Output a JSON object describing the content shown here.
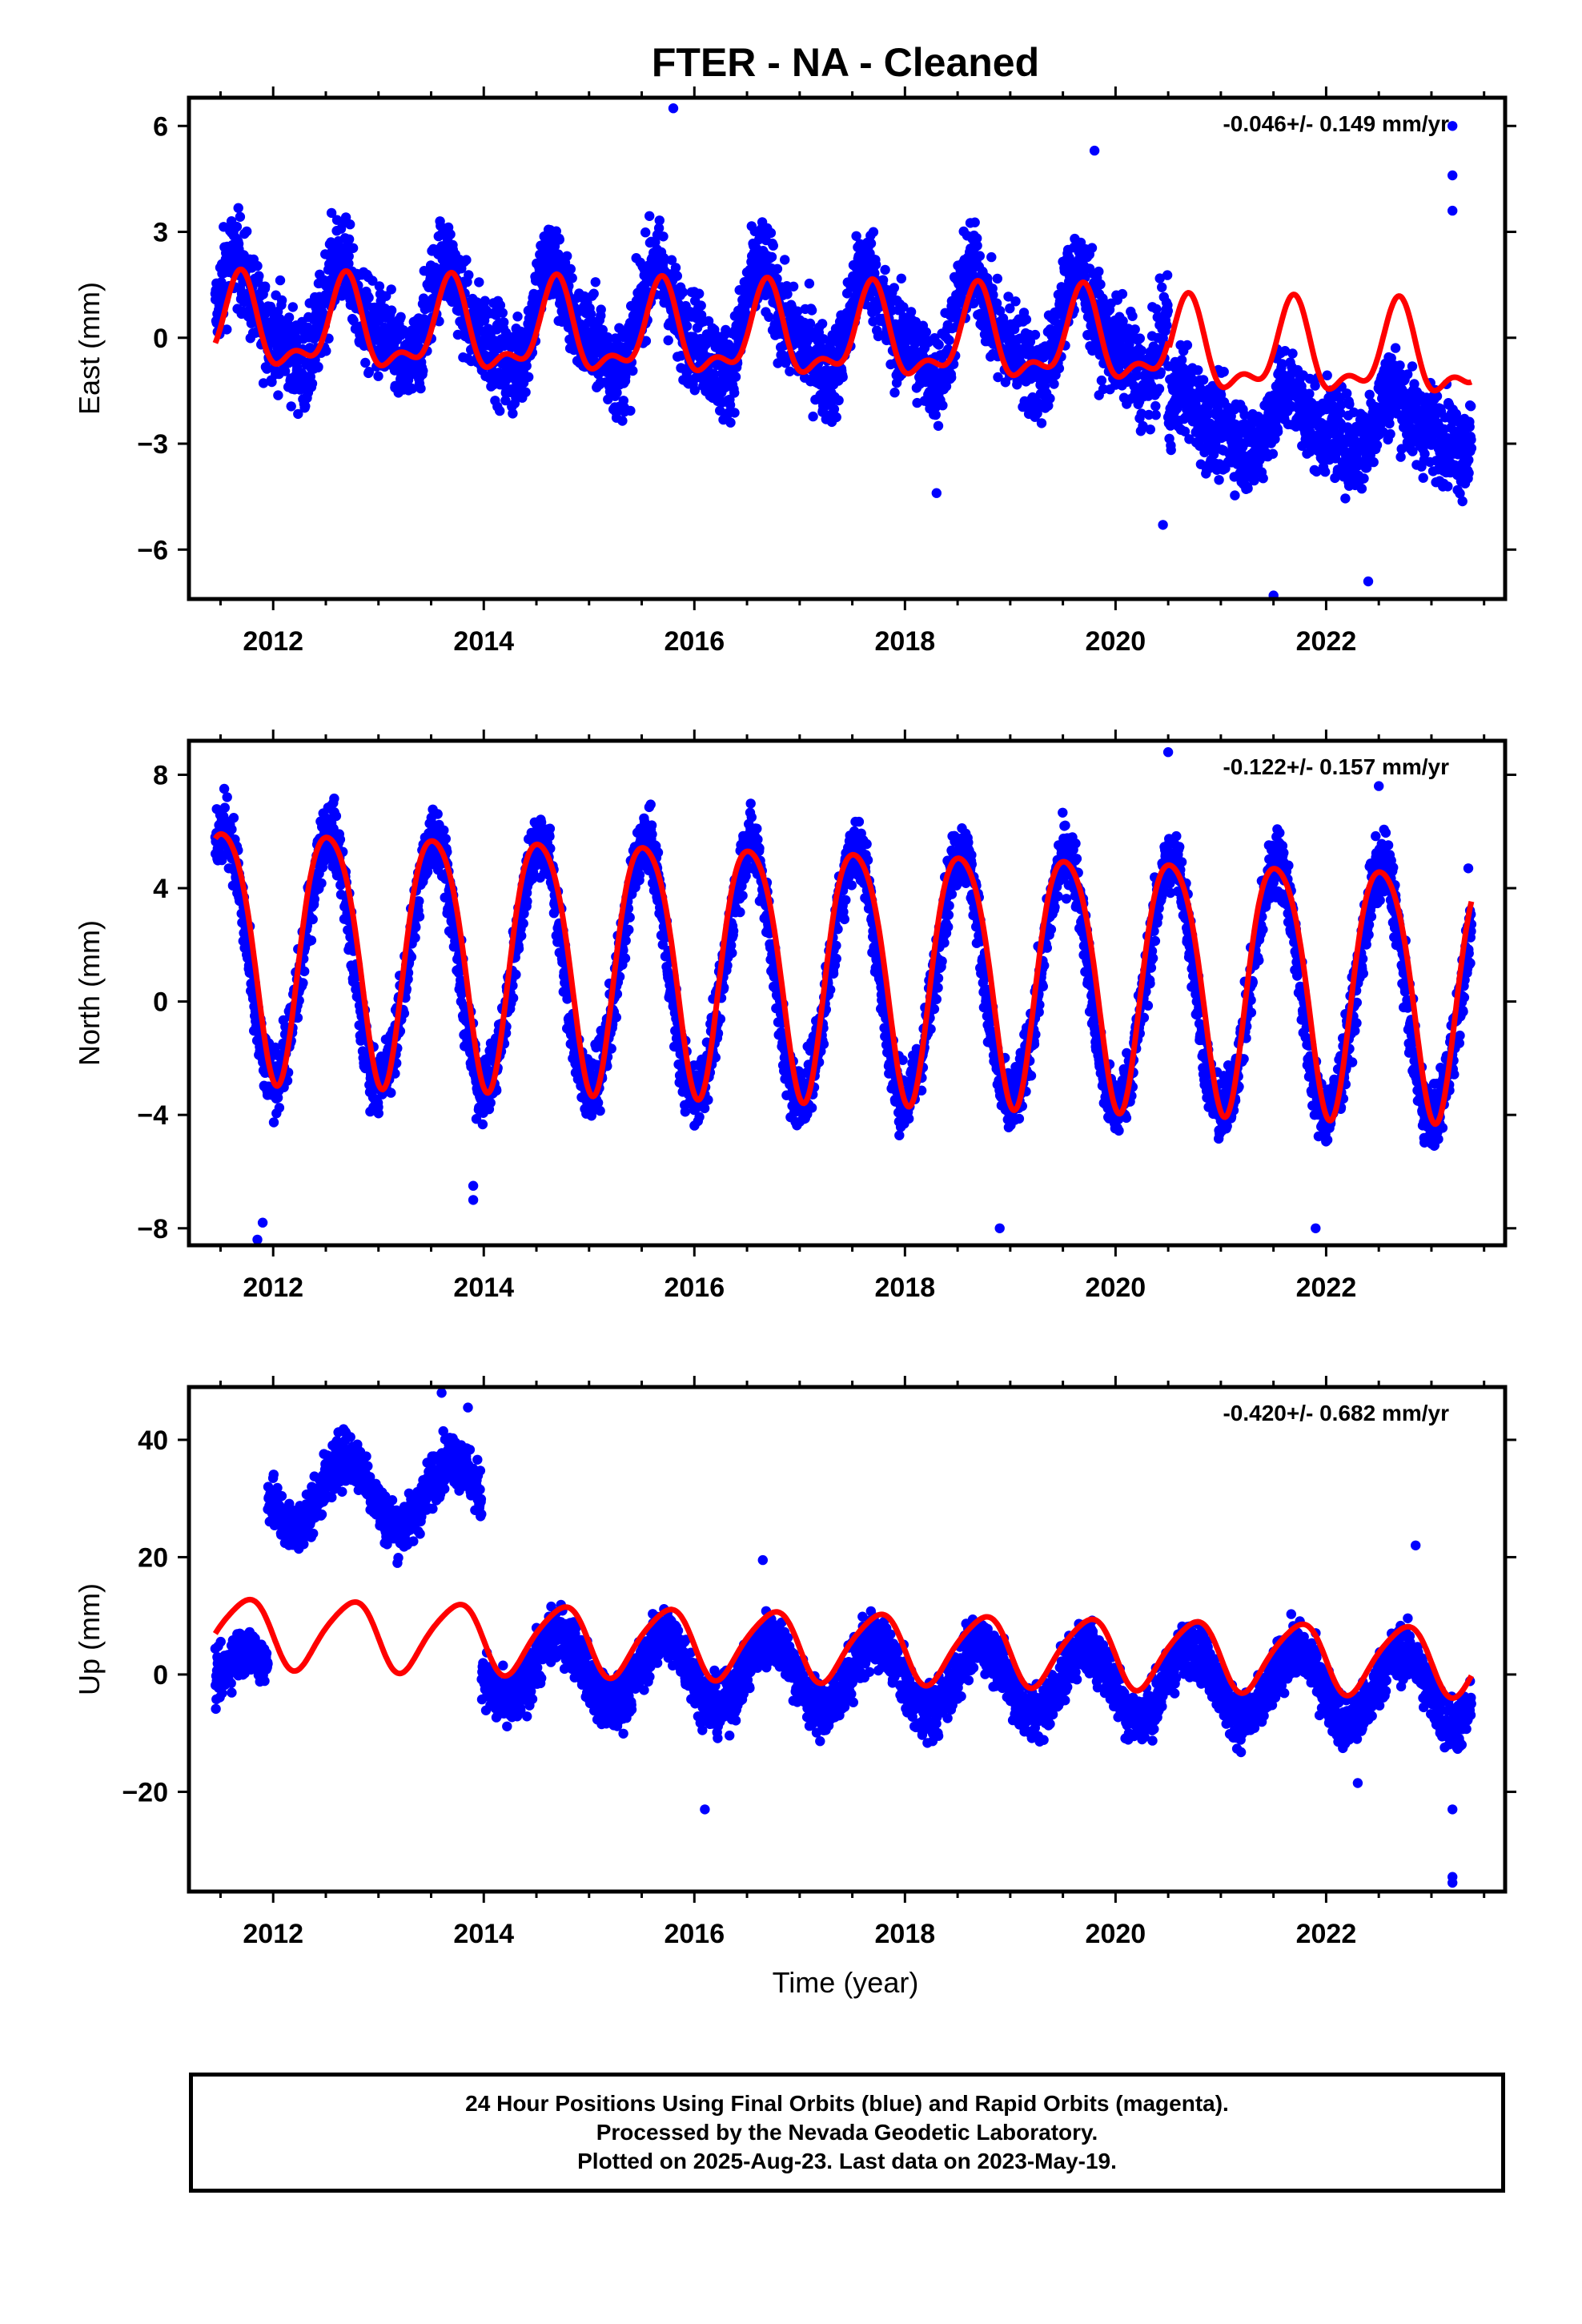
{
  "title": "FTER  - NA - Cleaned",
  "xlabel": "Time (year)",
  "footer": {
    "line1": "24 Hour Positions Using Final Orbits (blue) and Rapid Orbits (magenta).",
    "line2": "Processed by the Nevada Geodetic Laboratory.",
    "line3": "Plotted on 2025-Aug-23. Last data on 2023-May-19."
  },
  "colors": {
    "points": "#0000ff",
    "model": "#ff0000",
    "frame": "#000000"
  },
  "chart_data": [
    {
      "type": "scatter",
      "ylabel": "East (mm)",
      "rate_text": "-0.046+/- 0.149 mm/yr",
      "xlim": [
        2011.2,
        2023.7
      ],
      "ylim": [
        -7.4,
        6.8
      ],
      "xticks": [
        2012,
        2014,
        2016,
        2018,
        2020,
        2022
      ],
      "yticks": [
        -6,
        -3,
        0,
        3,
        6
      ],
      "yticklabels": [
        "−6",
        "−3",
        "0",
        "3",
        "6"
      ],
      "data_range": [
        2011.45,
        2023.38
      ],
      "series": [
        {
          "kind": "points",
          "segments": [
            {
              "from": 2011.45,
              "to": 2020.5,
              "offset": 0.3,
              "trend": -0.05,
              "annual": 1.3,
              "annual_phase": 0.68,
              "semi": 0.5,
              "noise": 1.25
            },
            {
              "from": 2020.5,
              "to": 2023.38,
              "offset": -2.4,
              "trend": 0.0,
              "annual": 0.7,
              "annual_phase": 0.68,
              "semi": 0.3,
              "noise": 1.2
            }
          ],
          "outliers": [
            [
              2015.8,
              6.5
            ],
            [
              2023.2,
              6.0
            ],
            [
              2023.2,
              4.6
            ],
            [
              2023.2,
              3.6
            ],
            [
              2018.3,
              -4.4
            ],
            [
              2021.5,
              -7.3
            ],
            [
              2022.4,
              -6.9
            ],
            [
              2020.45,
              -5.3
            ],
            [
              2019.8,
              5.3
            ]
          ]
        },
        {
          "kind": "model",
          "offset": 0.0,
          "trend": -0.046,
          "annual": 1.15,
          "annual_phase": 0.68,
          "semi": 0.55,
          "semi_phase": 0.2,
          "step": {
            "at": 2020.5,
            "delta": -0.25
          }
        }
      ]
    },
    {
      "type": "scatter",
      "ylabel": "North (mm)",
      "rate_text": "-0.122+/- 0.157 mm/yr",
      "xlim": [
        2011.2,
        2023.7
      ],
      "ylim": [
        -8.6,
        9.2
      ],
      "xticks": [
        2012,
        2014,
        2016,
        2018,
        2020,
        2022
      ],
      "yticks": [
        -8,
        -4,
        0,
        4,
        8
      ],
      "yticklabels": [
        "−8",
        "−4",
        "0",
        "4",
        "8"
      ],
      "data_range": [
        2011.45,
        2023.38
      ],
      "series": [
        {
          "kind": "points",
          "segments": [
            {
              "from": 2011.45,
              "to": 2023.38,
              "offset": 0.9,
              "trend": -0.12,
              "annual": 4.4,
              "annual_phase": 0.52,
              "semi": 0.3,
              "noise": 1.1
            }
          ],
          "outliers": [
            [
              2011.85,
              -8.4
            ],
            [
              2011.9,
              -7.8
            ],
            [
              2013.9,
              -7.0
            ],
            [
              2013.9,
              -6.5
            ],
            [
              2018.9,
              -8.0
            ],
            [
              2020.5,
              8.8
            ],
            [
              2021.9,
              -8.0
            ],
            [
              2023.35,
              4.7
            ],
            [
              2022.5,
              7.6
            ]
          ]
        },
        {
          "kind": "model",
          "offset": 1.4,
          "trend": -0.122,
          "annual": 4.4,
          "annual_phase": 0.53,
          "semi": 0.6,
          "semi_phase": 0.3,
          "step": null
        }
      ]
    },
    {
      "type": "scatter",
      "ylabel": "Up (mm)",
      "rate_text": "-0.420+/- 0.682 mm/yr",
      "xlim": [
        2011.2,
        2023.7
      ],
      "ylim": [
        -37,
        49
      ],
      "xticks": [
        2012,
        2014,
        2016,
        2018,
        2020,
        2022
      ],
      "yticks": [
        -20,
        0,
        20,
        40
      ],
      "yticklabels": [
        "−20",
        "0",
        "20",
        "40"
      ],
      "data_range": [
        2011.45,
        2023.38
      ],
      "series": [
        {
          "kind": "points",
          "segments": [
            {
              "from": 2011.45,
              "to": 2011.95,
              "offset": 0.0,
              "trend": 0.0,
              "annual": 4.0,
              "annual_phase": 0.75,
              "semi": 0.0,
              "noise": 4.0
            },
            {
              "from": 2011.95,
              "to": 2013.98,
              "offset": 31.0,
              "trend": 0.0,
              "annual": 6.0,
              "annual_phase": 0.7,
              "semi": 0.0,
              "noise": 4.2
            },
            {
              "from": 2013.98,
              "to": 2023.38,
              "offset": 0.0,
              "trend": -0.4,
              "annual": 6.0,
              "annual_phase": 0.72,
              "semi": 0.0,
              "noise": 4.4
            }
          ],
          "outliers": [
            [
              2013.6,
              48.0
            ],
            [
              2013.85,
              45.5
            ],
            [
              2016.65,
              19.5
            ],
            [
              2022.85,
              22.0
            ],
            [
              2023.2,
              -34.5
            ],
            [
              2023.2,
              -35.5
            ],
            [
              2023.2,
              -23.0
            ],
            [
              2022.3,
              -18.5
            ],
            [
              2016.1,
              -23.0
            ]
          ]
        },
        {
          "kind": "model",
          "offset": 5.0,
          "trend": -0.42,
          "annual": 5.8,
          "annual_phase": 0.73,
          "semi": 0.9,
          "semi_phase": 0.4,
          "step": null
        }
      ]
    }
  ]
}
